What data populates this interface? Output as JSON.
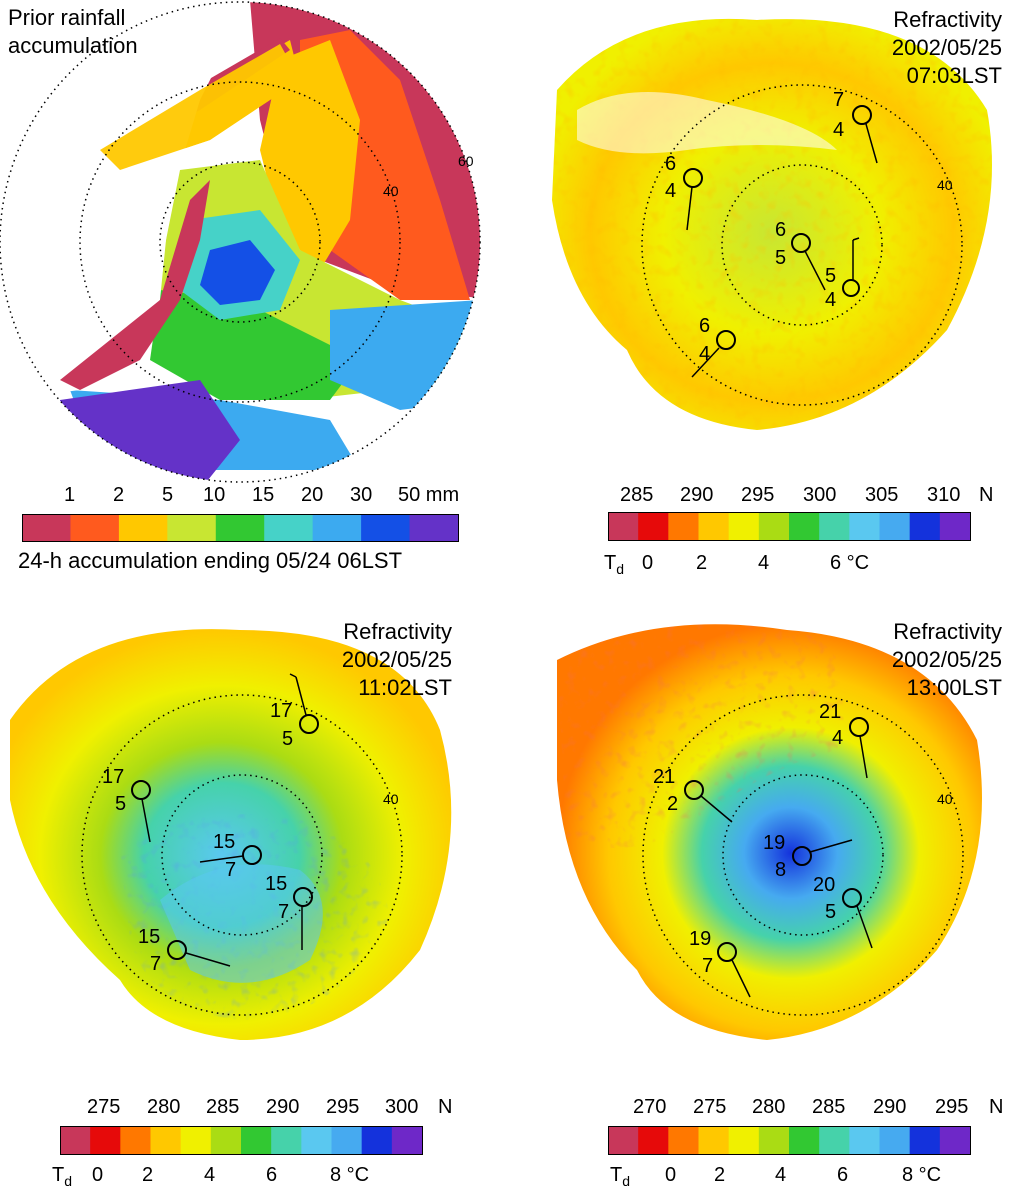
{
  "colors": {
    "rain_scale": [
      "#c8375a",
      "#ff5a1e",
      "#ffc800",
      "#c8e632",
      "#32c832",
      "#46d2c8",
      "#3caaf0",
      "#1450e6",
      "#6432c8"
    ],
    "refract_scale": [
      "#c8375a",
      "#e60a0a",
      "#ff7800",
      "#ffc800",
      "#f0f000",
      "#aadc14",
      "#32c832",
      "#46d2aa",
      "#5ac8f0",
      "#46aaf0",
      "#1432dc",
      "#6e28c8"
    ]
  },
  "panels": {
    "rain": {
      "title_line1": "Prior rainfall",
      "title_line2": "accumulation",
      "ring_labels": [
        "40",
        "60"
      ],
      "colorbar_ticks": [
        "1",
        "2",
        "5",
        "10",
        "15",
        "20",
        "30",
        "50 mm"
      ],
      "colorbar_caption": "24-h accumulation ending 05/24 06LST"
    },
    "refract_0703": {
      "title": "Refractivity",
      "date": "2002/05/25",
      "time": "07:03LST",
      "ring_label": "40",
      "stations": [
        {
          "temp": "7",
          "dew": "4"
        },
        {
          "temp": "6",
          "dew": "4"
        },
        {
          "temp": "6",
          "dew": "5"
        },
        {
          "temp": "5",
          "dew": "4"
        },
        {
          "temp": "6",
          "dew": "4"
        }
      ],
      "n_ticks": [
        "285",
        "290",
        "295",
        "300",
        "305",
        "310",
        "N"
      ],
      "td_label": "T",
      "td_sub": "d",
      "td_ticks": [
        "0",
        "2",
        "4",
        "6 °C"
      ]
    },
    "refract_1102": {
      "title": "Refractivity",
      "date": "2002/05/25",
      "time": "11:02LST",
      "ring_label": "40",
      "stations": [
        {
          "temp": "17",
          "dew": "5"
        },
        {
          "temp": "17",
          "dew": "5"
        },
        {
          "temp": "15",
          "dew": "7"
        },
        {
          "temp": "15",
          "dew": "7"
        },
        {
          "temp": "15",
          "dew": "7"
        }
      ],
      "n_ticks": [
        "275",
        "280",
        "285",
        "290",
        "295",
        "300",
        "N"
      ],
      "td_label": "T",
      "td_sub": "d",
      "td_ticks": [
        "0",
        "2",
        "4",
        "6",
        "8 °C"
      ]
    },
    "refract_1300": {
      "title": "Refractivity",
      "date": "2002/05/25",
      "time": "13:00LST",
      "ring_label": "40",
      "stations": [
        {
          "temp": "21",
          "dew": "4"
        },
        {
          "temp": "21",
          "dew": "2"
        },
        {
          "temp": "19",
          "dew": "8"
        },
        {
          "temp": "20",
          "dew": "5"
        },
        {
          "temp": "19",
          "dew": "7"
        }
      ],
      "n_ticks": [
        "270",
        "275",
        "280",
        "285",
        "290",
        "295",
        "N"
      ],
      "td_label": "T",
      "td_sub": "d",
      "td_ticks": [
        "0",
        "2",
        "4",
        "6",
        "8 °C"
      ]
    }
  }
}
